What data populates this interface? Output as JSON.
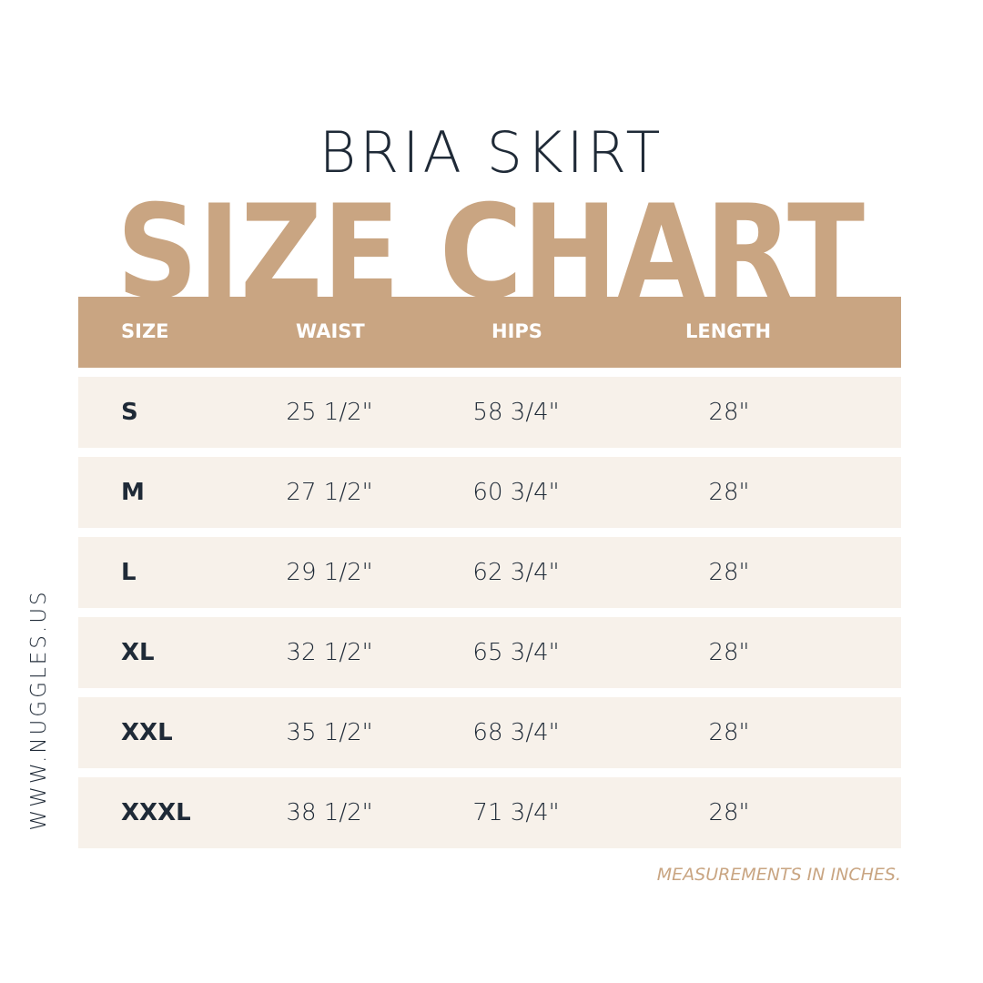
{
  "title": {
    "product": "BRIA SKIRT",
    "heading": "SIZE CHART"
  },
  "colors": {
    "accent": "#c9a582",
    "row_bg": "#f7f1ea",
    "text": "#1f2a37"
  },
  "table": {
    "headers": [
      "SIZE",
      "WAIST",
      "HIPS",
      "LENGTH"
    ],
    "rows": [
      {
        "size": "S",
        "waist": "25 1/2\"",
        "hips": "58 3/4\"",
        "length": "28\""
      },
      {
        "size": "M",
        "waist": "27 1/2\"",
        "hips": "60 3/4\"",
        "length": "28\""
      },
      {
        "size": "L",
        "waist": "29 1/2\"",
        "hips": "62 3/4\"",
        "length": "28\""
      },
      {
        "size": "XL",
        "waist": "32 1/2\"",
        "hips": "65 3/4\"",
        "length": "28\""
      },
      {
        "size": "XXL",
        "waist": "35 1/2\"",
        "hips": "68 3/4\"",
        "length": "28\""
      },
      {
        "size": "XXXL",
        "waist": "38 1/2\"",
        "hips": "71 3/4\"",
        "length": "28\""
      }
    ]
  },
  "footer": {
    "note": "MEASUREMENTS IN INCHES.",
    "website": "WWW.NUGGLES.US"
  }
}
